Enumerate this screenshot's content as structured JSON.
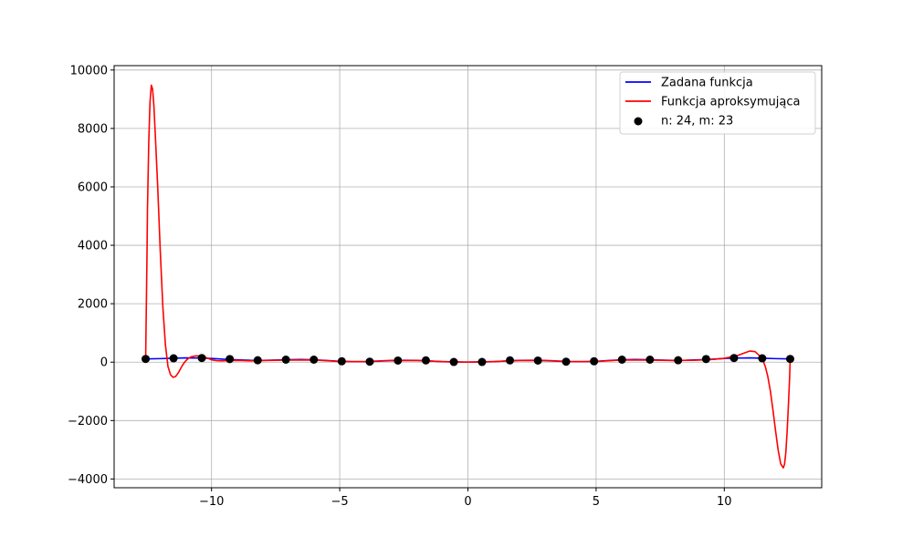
{
  "chart_data": {
    "type": "line",
    "title": "",
    "xlabel": "",
    "ylabel": "",
    "xlim": [
      -13.8,
      13.8
    ],
    "ylim": [
      -4300,
      10150
    ],
    "grid": true,
    "legend_position": "top-right",
    "x_ticks": [
      -10,
      -5,
      0,
      5,
      10
    ],
    "x_tick_labels": [
      "−10",
      "−5",
      "0",
      "5",
      "10"
    ],
    "y_ticks": [
      -4000,
      -2000,
      0,
      2000,
      4000,
      6000,
      8000,
      10000
    ],
    "y_tick_labels": [
      "−4000",
      "−2000",
      "0",
      "2000",
      "4000",
      "6000",
      "8000",
      "10000"
    ],
    "series": [
      {
        "name": "Zadana funkcja",
        "kind": "line",
        "color": "#0000ff",
        "x": [
          -12.57,
          -12.0,
          -11.5,
          -11.0,
          -10.5,
          -10.0,
          -9.5,
          -9.0,
          -8.5,
          -8.0,
          -7.5,
          -7.0,
          -6.5,
          -6.0,
          -5.5,
          -5.0,
          -4.5,
          -4.0,
          -3.5,
          -3.0,
          -2.5,
          -2.0,
          -1.5,
          -1.0,
          -0.5,
          0.0,
          0.5,
          1.0,
          1.5,
          2.0,
          2.5,
          3.0,
          3.5,
          4.0,
          4.5,
          5.0,
          5.5,
          6.0,
          6.5,
          7.0,
          7.5,
          8.0,
          8.5,
          9.0,
          9.5,
          10.0,
          10.5,
          11.0,
          11.5,
          12.0,
          12.57
        ],
        "y": [
          110,
          120,
          135,
          145,
          140,
          125,
          100,
          80,
          65,
          60,
          70,
          85,
          90,
          80,
          55,
          30,
          15,
          15,
          30,
          50,
          65,
          60,
          40,
          15,
          5,
          0,
          5,
          15,
          40,
          60,
          65,
          50,
          30,
          15,
          15,
          30,
          55,
          80,
          90,
          85,
          70,
          60,
          65,
          80,
          100,
          125,
          140,
          145,
          135,
          120,
          110
        ]
      },
      {
        "name": "Funkcja aproksymująca",
        "kind": "line",
        "color": "#ff0000",
        "x": [
          -12.57,
          -12.55,
          -12.52,
          -12.5,
          -12.45,
          -12.4,
          -12.35,
          -12.3,
          -12.25,
          -12.2,
          -12.1,
          -12.0,
          -11.9,
          -11.8,
          -11.7,
          -11.6,
          -11.5,
          -11.4,
          -11.3,
          -11.2,
          -11.1,
          -11.0,
          -10.9,
          -10.8,
          -10.6,
          -10.4,
          -10.2,
          -10.0,
          -9.8,
          -9.6,
          -9.4,
          -9.2,
          -9.0,
          -8.5,
          -8.0,
          -7.0,
          -6.0,
          -5.0,
          -4.0,
          -3.0,
          -2.0,
          -1.0,
          0.0,
          1.0,
          2.0,
          3.0,
          4.0,
          5.0,
          6.0,
          7.0,
          8.0,
          9.0,
          9.5,
          10.0,
          10.5,
          10.8,
          11.0,
          11.2,
          11.4,
          11.5,
          11.6,
          11.7,
          11.8,
          11.9,
          12.0,
          12.1,
          12.2,
          12.3,
          12.35,
          12.4,
          12.45,
          12.5,
          12.55,
          12.57
        ],
        "y": [
          110,
          1500,
          3500,
          5200,
          7500,
          8900,
          9480,
          9350,
          8800,
          7900,
          6000,
          3800,
          1900,
          600,
          -150,
          -430,
          -520,
          -490,
          -370,
          -210,
          -60,
          50,
          130,
          180,
          215,
          200,
          150,
          80,
          50,
          45,
          50,
          55,
          60,
          45,
          55,
          70,
          75,
          20,
          20,
          60,
          55,
          20,
          0,
          20,
          55,
          60,
          20,
          20,
          75,
          70,
          55,
          70,
          90,
          130,
          220,
          320,
          380,
          360,
          200,
          80,
          -150,
          -500,
          -1000,
          -1650,
          -2350,
          -3000,
          -3480,
          -3620,
          -3500,
          -3100,
          -2400,
          -1500,
          -500,
          110
        ]
      },
      {
        "name": "n: 24, m: 23",
        "kind": "scatter",
        "color": "#000000",
        "x": [
          -12.57,
          -11.48,
          -10.38,
          -9.29,
          -8.2,
          -7.1,
          -6.01,
          -4.92,
          -3.83,
          -2.73,
          -1.64,
          -0.55,
          0.55,
          1.64,
          2.73,
          3.83,
          4.92,
          6.01,
          7.1,
          8.2,
          9.29,
          10.38,
          11.48,
          12.57
        ],
        "y": [
          110,
          130,
          140,
          105,
          65,
          85,
          85,
          30,
          15,
          55,
          60,
          5,
          5,
          60,
          55,
          15,
          30,
          85,
          85,
          65,
          105,
          140,
          130,
          110
        ]
      }
    ]
  }
}
